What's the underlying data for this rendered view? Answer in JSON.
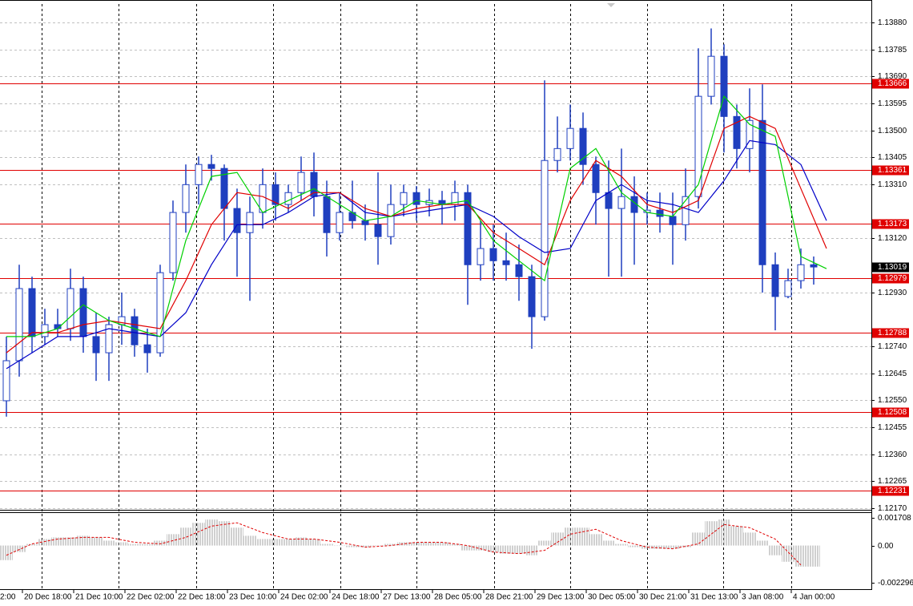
{
  "chart_data": [
    {
      "type": "candlestick",
      "xlim": [
        -0.5,
        67.5
      ],
      "xticks": [
        {
          "value": -2.75,
          "label": "2:00"
        },
        {
          "value": 1.25,
          "label": "20 Dec 18:00"
        },
        {
          "value": 5.25,
          "label": "21 Dec 10:00"
        },
        {
          "value": 9.25,
          "label": "22 Dec 02:00"
        },
        {
          "value": 13.25,
          "label": "22 Dec 18:00"
        },
        {
          "value": 17.25,
          "label": "23 Dec 10:00"
        },
        {
          "value": 21.25,
          "label": "24 Dec 02:00"
        },
        {
          "value": 25.25,
          "label": "24 Dec 18:00"
        },
        {
          "value": 29.25,
          "label": "27 Dec 13:00"
        },
        {
          "value": 33.25,
          "label": "28 Dec 05:00"
        },
        {
          "value": 37.25,
          "label": "28 Dec 21:00"
        },
        {
          "value": 41.25,
          "label": "29 Dec 13:00"
        },
        {
          "value": 45.25,
          "label": "30 Dec 05:00"
        },
        {
          "value": 49.25,
          "label": "30 Dec 21:00"
        },
        {
          "value": 53.25,
          "label": "31 Dec 13:00"
        },
        {
          "value": 57.25,
          "label": "3 Jan 08:00"
        },
        {
          "value": 61.25,
          "label": "4 Jan 00:00"
        }
      ],
      "ylim": [
        1.12164,
        1.13945
      ],
      "yticks": [
        {
          "value": 1.1388,
          "label": "1.13880"
        },
        {
          "value": 1.13785,
          "label": "1.13785"
        },
        {
          "value": 1.1369,
          "label": "1.13690"
        },
        {
          "value": 1.13595,
          "label": "1.13595"
        },
        {
          "value": 1.135,
          "label": "1.13500"
        },
        {
          "value": 1.13405,
          "label": "1.13405"
        },
        {
          "value": 1.1331,
          "label": "1.13310"
        },
        {
          "value": 1.1312,
          "label": "1.13120"
        },
        {
          "value": 1.1293,
          "label": "1.12930"
        },
        {
          "value": 1.1274,
          "label": "1.12740"
        },
        {
          "value": 1.12645,
          "label": "1.12645"
        },
        {
          "value": 1.1255,
          "label": "1.12550"
        },
        {
          "value": 1.12455,
          "label": "1.12455"
        },
        {
          "value": 1.1236,
          "label": "1.12360"
        },
        {
          "value": 1.12265,
          "label": "1.12265"
        },
        {
          "value": 1.1217,
          "label": "1.12170"
        }
      ],
      "grid": true,
      "color": "#1f3fbf",
      "open": [
        1.12548,
        1.12689,
        1.12943,
        1.12774,
        1.12816,
        1.12802,
        1.12943,
        1.12774,
        1.12717,
        1.12816,
        1.12844,
        1.12745,
        1.12717,
        1.12999,
        1.13211,
        1.13309,
        1.1338,
        1.13366,
        1.13225,
        1.1314,
        1.13211,
        1.13309,
        1.13239,
        1.13281,
        1.13352,
        1.13267,
        1.1314,
        1.13211,
        1.13182,
        1.13168,
        1.13126,
        1.13239,
        1.13281,
        1.13239,
        1.13253,
        1.13239,
        1.13281,
        1.13027,
        1.13084,
        1.13041,
        1.13027,
        1.12985,
        1.12844,
        1.13394,
        1.13436,
        1.13507,
        1.1338,
        1.13281,
        1.13225,
        1.13267,
        1.13211,
        1.13219,
        1.13197,
        1.13168,
        1.13267,
        1.1362,
        1.13761,
        1.13549,
        1.13436,
        1.13535,
        1.13027,
        1.12915,
        1.12971,
        1.13027
      ],
      "high": [
        1.12774,
        1.13027,
        1.12985,
        1.12872,
        1.12872,
        1.13013,
        1.12985,
        1.12858,
        1.12844,
        1.12929,
        1.12872,
        1.12802,
        1.13027,
        1.13253,
        1.1338,
        1.13408,
        1.13414,
        1.1338,
        1.13295,
        1.13267,
        1.13366,
        1.13352,
        1.13309,
        1.13408,
        1.13422,
        1.13323,
        1.13281,
        1.13323,
        1.13239,
        1.13352,
        1.13309,
        1.13309,
        1.13304,
        1.13295,
        1.13287,
        1.13323,
        1.13309,
        1.13182,
        1.13168,
        1.1314,
        1.13098,
        1.13027,
        1.13676,
        1.13549,
        1.13591,
        1.13563,
        1.13408,
        1.13394,
        1.13436,
        1.13338,
        1.13281,
        1.13281,
        1.13281,
        1.13366,
        1.13789,
        1.13859,
        1.13803,
        1.13591,
        1.13648,
        1.13662,
        1.1307,
        1.13013,
        1.13084,
        1.13056
      ],
      "low": [
        1.12492,
        1.12633,
        1.12717,
        1.12745,
        1.12774,
        1.12759,
        1.12717,
        1.12618,
        1.12618,
        1.12745,
        1.12703,
        1.12647,
        1.12703,
        1.12971,
        1.1314,
        1.13239,
        1.13323,
        1.13112,
        1.12985,
        1.129,
        1.13154,
        1.13182,
        1.13211,
        1.13253,
        1.13197,
        1.13056,
        1.13112,
        1.13154,
        1.13112,
        1.13027,
        1.13098,
        1.13197,
        1.13182,
        1.13197,
        1.13168,
        1.13182,
        1.12886,
        1.12971,
        1.12971,
        1.12971,
        1.129,
        1.12731,
        1.1283,
        1.13352,
        1.13394,
        1.13309,
        1.13168,
        1.12985,
        1.12985,
        1.13027,
        1.13168,
        1.1314,
        1.13027,
        1.13112,
        1.13225,
        1.13591,
        1.13422,
        1.13366,
        1.13352,
        1.12929,
        1.12796,
        1.12909,
        1.12943,
        1.12957
      ],
      "close": [
        1.12689,
        1.12943,
        1.12774,
        1.12816,
        1.12802,
        1.12943,
        1.12774,
        1.12717,
        1.12816,
        1.12844,
        1.12745,
        1.12717,
        1.12999,
        1.13211,
        1.13309,
        1.1338,
        1.13366,
        1.13225,
        1.1314,
        1.13211,
        1.13309,
        1.13239,
        1.13281,
        1.13352,
        1.13267,
        1.1314,
        1.13211,
        1.13182,
        1.13168,
        1.13126,
        1.13239,
        1.13281,
        1.13239,
        1.13253,
        1.13239,
        1.13281,
        1.13027,
        1.13084,
        1.13041,
        1.13027,
        1.12985,
        1.12844,
        1.13394,
        1.13436,
        1.13507,
        1.1338,
        1.13281,
        1.13225,
        1.13267,
        1.13211,
        1.13219,
        1.13197,
        1.13168,
        1.13267,
        1.1362,
        1.13761,
        1.13549,
        1.13436,
        1.13535,
        1.13027,
        1.12915,
        1.12971,
        1.13027,
        1.13019
      ],
      "series": [
        {
          "color": "#0000c8",
          "x": [
            0,
            2,
            4,
            6,
            8,
            10,
            12,
            14,
            16,
            18,
            20,
            22,
            24,
            26,
            28,
            30,
            32,
            34,
            36,
            38,
            40,
            42,
            44,
            46,
            48,
            50,
            52,
            54,
            56,
            58,
            60,
            62,
            64
          ],
          "values": [
            1.12661,
            1.12717,
            1.12774,
            1.12774,
            1.12802,
            1.12788,
            1.12774,
            1.12858,
            1.13027,
            1.13168,
            1.13168,
            1.13211,
            1.13267,
            1.13281,
            1.13211,
            1.13197,
            1.13211,
            1.13225,
            1.13239,
            1.13197,
            1.13126,
            1.1307,
            1.13084,
            1.13253,
            1.13309,
            1.13253,
            1.13239,
            1.13211,
            1.13323,
            1.13464,
            1.1345,
            1.1338,
            1.13182
          ]
        },
        {
          "color": "#e00000",
          "x": [
            0,
            2,
            4,
            6,
            8,
            10,
            12,
            14,
            16,
            18,
            20,
            22,
            24,
            26,
            28,
            30,
            32,
            34,
            36,
            38,
            40,
            42,
            44,
            46,
            48,
            50,
            52,
            54,
            56,
            58,
            60,
            62,
            64
          ],
          "values": [
            1.12717,
            1.12788,
            1.12788,
            1.12816,
            1.1283,
            1.12816,
            1.12802,
            1.12971,
            1.13168,
            1.13281,
            1.13267,
            1.13225,
            1.13281,
            1.13281,
            1.13225,
            1.13197,
            1.13225,
            1.13239,
            1.13239,
            1.1314,
            1.13084,
            1.13027,
            1.13253,
            1.13394,
            1.13338,
            1.13239,
            1.13211,
            1.13253,
            1.13507,
            1.13549,
            1.13507,
            1.13295,
            1.13084
          ]
        },
        {
          "color": "#00d000",
          "x": [
            0,
            2,
            4,
            6,
            8,
            10,
            12,
            14,
            16,
            18,
            20,
            22,
            24,
            26,
            28,
            30,
            32,
            34,
            36,
            38,
            40,
            42,
            44,
            46,
            48,
            50,
            52,
            54,
            56,
            58,
            60,
            62,
            64
          ],
          "values": [
            1.12774,
            1.12774,
            1.12802,
            1.12886,
            1.1283,
            1.12802,
            1.12774,
            1.13112,
            1.13338,
            1.13352,
            1.13211,
            1.13253,
            1.13295,
            1.13239,
            1.13182,
            1.13197,
            1.13253,
            1.13239,
            1.13253,
            1.13112,
            1.13041,
            1.12971,
            1.13366,
            1.13436,
            1.13281,
            1.13211,
            1.13197,
            1.13309,
            1.1362,
            1.13521,
            1.13479,
            1.13056,
            1.13013
          ]
        }
      ],
      "levels": {
        "color": "#e00000",
        "values": [
          1.13666,
          1.13361,
          1.13173,
          1.12979,
          1.12788,
          1.12508,
          1.12231
        ]
      },
      "last_price": 1.13019
    },
    {
      "type": "oscillator",
      "ylim": [
        -0.002691,
        0.002005
      ],
      "yticks": [
        0.001708,
        {
          "value": 0,
          "label": "0.00"
        },
        -0.002296
      ],
      "color": "#a0a0a0",
      "values": [
        -0.0009,
        -0.0004,
        0.0001,
        0.0004,
        0.0005,
        0.0005,
        0.0006,
        0.0005,
        0.0003,
        0.0002,
        0.0001,
        0.0001,
        0.0003,
        0.0007,
        0.0011,
        0.0014,
        0.0016,
        0.0015,
        0.0011,
        0.0006,
        0.0004,
        0.0004,
        0.0004,
        0.0005,
        0.0004,
        0.0001,
        0,
        -0.0001,
        -0.0001,
        0,
        0.0001,
        0.0002,
        0.0002,
        0.0002,
        0.0002,
        0.0001,
        -0.0003,
        -0.0003,
        -0.0004,
        -0.0005,
        -0.0005,
        -0.0006,
        0.0003,
        0.0008,
        0.0011,
        0.0011,
        0.0007,
        0.0003,
        0.0001,
        -0.0001,
        -0.0002,
        -0.0002,
        -0.0002,
        -0.0001,
        0.0008,
        0.0015,
        0.0016,
        0.0012,
        0.0008,
        0.0003,
        -0.0006,
        -0.001,
        -0.0013,
        -0.0013
      ],
      "signal": {
        "color": "#e00000",
        "x": [
          0,
          2,
          4,
          6,
          8,
          10,
          12,
          14,
          16,
          18,
          20,
          22,
          24,
          26,
          28,
          30,
          32,
          34,
          36,
          38,
          40,
          42,
          44,
          46,
          48,
          50,
          52,
          54,
          56,
          58,
          60,
          62
        ],
        "values": [
          -0.0006,
          0.0001,
          0.0004,
          0.0005,
          0.0005,
          0.0002,
          0.0001,
          0.0005,
          0.0012,
          0.0014,
          0.0008,
          0.0004,
          0.0004,
          0.0002,
          -0.0001,
          0,
          0.0002,
          0.0002,
          0,
          -0.0004,
          -0.0005,
          -0.0003,
          0.0007,
          0.001,
          0.0003,
          -0.0001,
          -0.0002,
          0.0001,
          0.0013,
          0.0011,
          0.0004,
          -0.0012
        ]
      }
    }
  ]
}
